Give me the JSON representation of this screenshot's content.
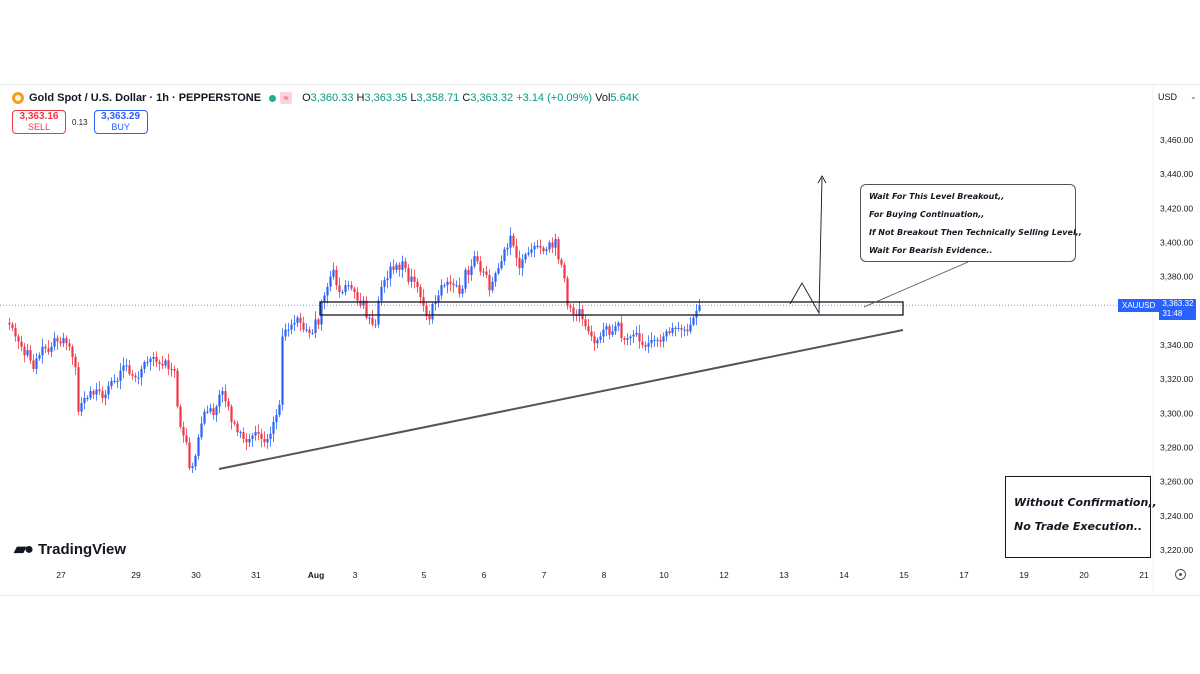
{
  "legend": {
    "symbol": "Gold Spot / U.S. Dollar · 1h · PEPPERSTONE",
    "badge": "≈",
    "open_label": "O",
    "open": "3,360.33",
    "high_label": "H",
    "high": "3,363.35",
    "low_label": "L",
    "low": "3,358.71",
    "close_label": "C",
    "close": "3,363.32",
    "change": "+3.14 (+0.09%)",
    "vol_label": "Vol",
    "vol": "5.64K"
  },
  "quote": {
    "sell_price": "3,363.16",
    "sell_label": "SELL",
    "spread": "0.13",
    "buy_price": "3,363.29",
    "buy_label": "BUY"
  },
  "currency": "USD",
  "brand": "TradingView",
  "price_tag": {
    "symbol": "XAUUSD",
    "price": "3,363.32",
    "countdown": "31:48"
  },
  "annotations": {
    "note_lines": [
      "Wait For This Level Breakout,,",
      "For Buying Continuation,,",
      "If Not Breakout Then Technically Selling Level,,",
      "Wait For Bearish Evidence.."
    ],
    "warning_lines": [
      "Without Confirmation,,",
      "No Trade Execution.."
    ]
  },
  "colors": {
    "up": "#2962ff",
    "down": "#f23645",
    "grid_line": "#2962ff"
  },
  "chart_data": {
    "type": "candlestick",
    "title": "",
    "xlabel": "",
    "ylabel": "",
    "y_ticks": [
      3460,
      3440,
      3420,
      3400,
      3380,
      3360,
      3340,
      3320,
      3300,
      3280,
      3260,
      3240,
      3220
    ],
    "y_tick_labels": [
      "3,460.00",
      "3,440.00",
      "3,420.00",
      "3,400.00",
      "3,380.00",
      "3,360.00",
      "3,340.00",
      "3,320.00",
      "3,300.00",
      "3,280.00",
      "3,260.00",
      "3,240.00",
      "3,220.00"
    ],
    "ylim": [
      3210,
      3475
    ],
    "x_tick_labels": [
      "27",
      "29",
      "30",
      "31",
      "Aug",
      "3",
      "5",
      "6",
      "7",
      "8",
      "10",
      "12",
      "13",
      "14",
      "15",
      "17",
      "19",
      "20",
      "21"
    ],
    "x_tick_index": [
      5,
      30,
      50,
      70,
      90,
      103,
      126,
      146,
      166,
      186,
      206,
      226,
      246,
      266,
      286,
      306,
      326,
      346,
      366
    ],
    "num_slots": 380,
    "current_price": 3363.32,
    "closes": [
      3352,
      3350,
      3345,
      3342,
      3339,
      3334,
      3337,
      3331,
      3326,
      3332,
      3334,
      3339,
      3338,
      3336,
      3339,
      3344,
      3342,
      3341,
      3344,
      3341,
      3339,
      3333,
      3327,
      3301,
      3306,
      3309,
      3309,
      3313,
      3311,
      3314,
      3313,
      3309,
      3311,
      3316,
      3319,
      3319,
      3319,
      3325,
      3328,
      3328,
      3323,
      3322,
      3321,
      3321,
      3326,
      3330,
      3330,
      3332,
      3333,
      3330,
      3329,
      3328,
      3331,
      3326,
      3326,
      3325,
      3304,
      3292,
      3287,
      3283,
      3268,
      3269,
      3275,
      3286,
      3294,
      3301,
      3301,
      3303,
      3299,
      3304,
      3311,
      3313,
      3307,
      3304,
      3295,
      3294,
      3289,
      3289,
      3285,
      3283,
      3285,
      3287,
      3289,
      3288,
      3285,
      3283,
      3285,
      3288,
      3295,
      3299,
      3305,
      3345,
      3349,
      3349,
      3352,
      3353,
      3356,
      3353,
      3349,
      3349,
      3347,
      3347,
      3355,
      3352,
      3365,
      3369,
      3374,
      3380,
      3384,
      3375,
      3371,
      3371,
      3375,
      3375,
      3373,
      3371,
      3366,
      3363,
      3366,
      3356,
      3356,
      3352,
      3352,
      3366,
      3374,
      3378,
      3379,
      3386,
      3384,
      3387,
      3384,
      3389,
      3385,
      3377,
      3380,
      3377,
      3374,
      3368,
      3363,
      3357,
      3355,
      3364,
      3365,
      3369,
      3375,
      3375,
      3377,
      3376,
      3375,
      3375,
      3370,
      3373,
      3384,
      3381,
      3386,
      3392,
      3389,
      3383,
      3383,
      3381,
      3372,
      3377,
      3382,
      3385,
      3389,
      3396,
      3397,
      3404,
      3398,
      3391,
      3385,
      3390,
      3393,
      3394,
      3396,
      3398,
      3398,
      3397,
      3395,
      3396,
      3400,
      3397,
      3402,
      3390,
      3387,
      3379,
      3363,
      3362,
      3358,
      3357,
      3361,
      3355,
      3351,
      3348,
      3345,
      3341,
      3343,
      3345,
      3349,
      3351,
      3346,
      3348,
      3351,
      3353,
      3344,
      3343,
      3344,
      3345,
      3346,
      3347,
      3342,
      3340,
      3339,
      3341,
      3343,
      3343,
      3343,
      3342,
      3345,
      3348,
      3347,
      3350,
      3350,
      3350,
      3349,
      3349,
      3348,
      3352,
      3356,
      3360,
      3363.32
    ]
  }
}
